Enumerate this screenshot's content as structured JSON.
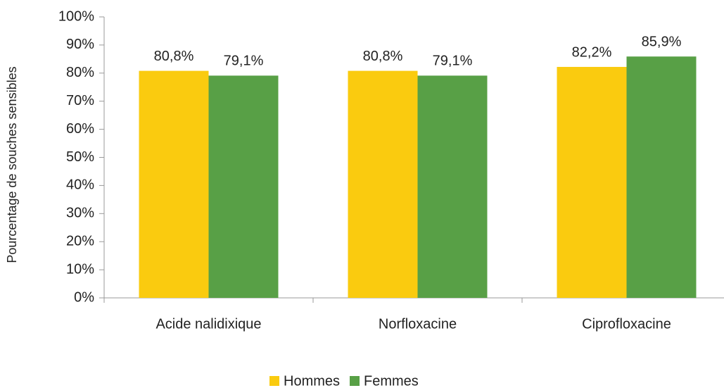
{
  "chart_data": {
    "type": "bar",
    "y_label": "Pourcentage de souches sensibles",
    "categories": [
      "Acide nalidixique",
      "Norfloxacine",
      "Ciprofloxacine"
    ],
    "series": [
      {
        "name": "Hommes",
        "color": "#facb0f",
        "values": [
          80.8,
          80.8,
          82.2
        ],
        "value_labels": [
          "80,8%",
          "80,8%",
          "82,2%"
        ]
      },
      {
        "name": "Femmes",
        "color": "#58a046",
        "values": [
          79.1,
          79.1,
          85.9
        ],
        "value_labels": [
          "79,1%",
          "79,1%",
          "85,9%"
        ]
      }
    ],
    "ylim": [
      0,
      100
    ],
    "yticks": [
      {
        "value": 0,
        "label": "0%"
      },
      {
        "value": 10,
        "label": "10%"
      },
      {
        "value": 20,
        "label": "20%"
      },
      {
        "value": 30,
        "label": "30%"
      },
      {
        "value": 40,
        "label": "40%"
      },
      {
        "value": 50,
        "label": "50%"
      },
      {
        "value": 60,
        "label": "60%"
      },
      {
        "value": 70,
        "label": "70%"
      },
      {
        "value": 80,
        "label": "80%"
      },
      {
        "value": 90,
        "label": "90%"
      },
      {
        "value": 100,
        "label": "100%"
      }
    ],
    "legend": "bottom"
  }
}
